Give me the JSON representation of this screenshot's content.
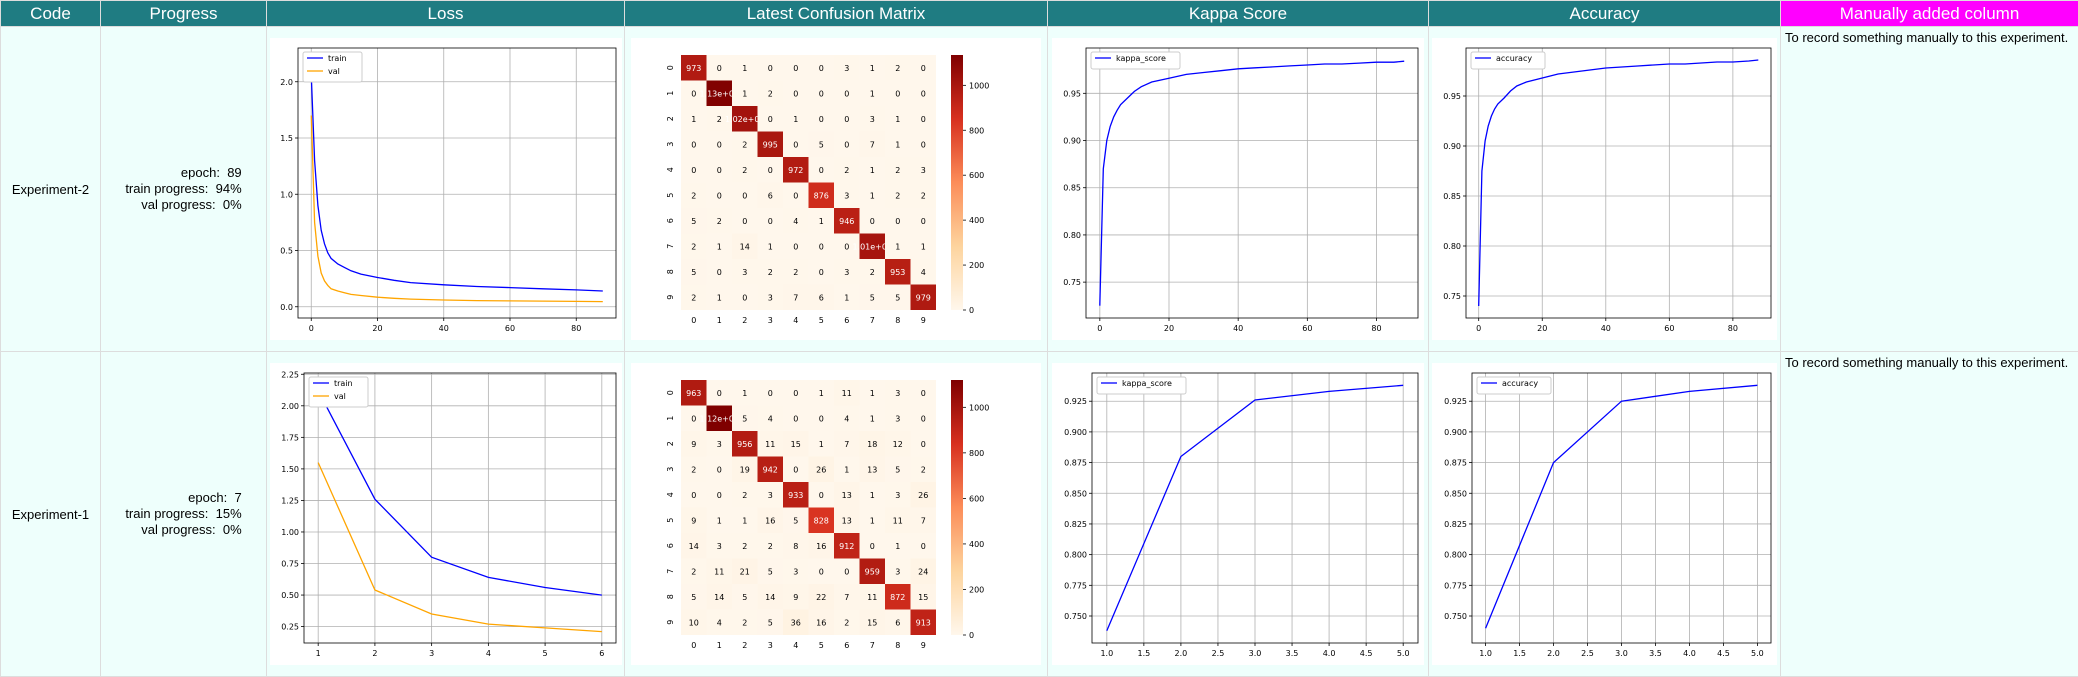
{
  "table": {
    "headers": [
      "Code",
      "Progress",
      "Loss",
      "Latest Confusion Matrix",
      "Kappa Score",
      "Accuracy",
      "Manually added column"
    ],
    "manual_header_color": "#ff00ff",
    "header_color": "#1f7c82",
    "rows": [
      {
        "code": "Experiment-2",
        "progress": {
          "epoch_label": "epoch:",
          "epoch": "89",
          "train_label": "train progress:",
          "train": "94%",
          "val_label": "val progress:",
          "val": "0%"
        },
        "manual_note": "To record something manually to this experiment."
      },
      {
        "code": "Experiment-1",
        "progress": {
          "epoch_label": "epoch:",
          "epoch": "7",
          "train_label": "train progress:",
          "train": "15%",
          "val_label": "val progress:",
          "val": "0%"
        },
        "manual_note": "To record something manually to this experiment."
      }
    ]
  },
  "chart_data": [
    {
      "id": "loss-exp2",
      "type": "line",
      "series": [
        {
          "name": "train",
          "color": "#0000ff",
          "x": [
            0,
            1,
            2,
            3,
            4,
            5,
            6,
            8,
            10,
            12,
            15,
            20,
            25,
            30,
            40,
            50,
            60,
            70,
            80,
            88
          ],
          "y": [
            2.05,
            1.3,
            0.9,
            0.68,
            0.56,
            0.48,
            0.43,
            0.38,
            0.35,
            0.32,
            0.29,
            0.26,
            0.235,
            0.215,
            0.195,
            0.18,
            0.17,
            0.16,
            0.15,
            0.14
          ]
        },
        {
          "name": "val",
          "color": "#ffa500",
          "x": [
            0,
            1,
            2,
            3,
            4,
            5,
            6,
            8,
            10,
            12,
            15,
            20,
            25,
            30,
            40,
            50,
            60,
            70,
            80,
            88
          ],
          "y": [
            1.7,
            0.75,
            0.45,
            0.3,
            0.23,
            0.19,
            0.16,
            0.14,
            0.125,
            0.11,
            0.1,
            0.085,
            0.075,
            0.068,
            0.06,
            0.055,
            0.052,
            0.05,
            0.048,
            0.046
          ]
        }
      ],
      "xlim": [
        -4,
        92
      ],
      "ylim": [
        -0.1,
        2.3
      ],
      "xticks": [
        0,
        20,
        40,
        60,
        80
      ],
      "yticks": [
        0.0,
        0.5,
        1.0,
        1.5,
        2.0
      ],
      "xtick_labels": [
        "0",
        "20",
        "40",
        "60",
        "80"
      ],
      "ytick_labels": [
        "0.0",
        "0.5",
        "1.0",
        "1.5",
        "2.0"
      ],
      "legend": [
        "train",
        "val"
      ],
      "legend_position": "top-left",
      "grid": true
    },
    {
      "id": "kappa-exp2",
      "type": "line",
      "series": [
        {
          "name": "kappa_score",
          "color": "#0000ff",
          "x": [
            0,
            1,
            2,
            3,
            4,
            5,
            6,
            8,
            10,
            12,
            15,
            20,
            25,
            30,
            35,
            40,
            45,
            50,
            55,
            60,
            65,
            70,
            75,
            80,
            85,
            88
          ],
          "y": [
            0.725,
            0.87,
            0.9,
            0.915,
            0.925,
            0.932,
            0.938,
            0.945,
            0.952,
            0.957,
            0.962,
            0.966,
            0.97,
            0.972,
            0.974,
            0.976,
            0.977,
            0.978,
            0.979,
            0.98,
            0.981,
            0.981,
            0.982,
            0.983,
            0.983,
            0.984
          ]
        }
      ],
      "xlim": [
        -4,
        92
      ],
      "ylim": [
        0.712,
        0.998
      ],
      "xticks": [
        0,
        20,
        40,
        60,
        80
      ],
      "yticks": [
        0.75,
        0.8,
        0.85,
        0.9,
        0.95
      ],
      "xtick_labels": [
        "0",
        "20",
        "40",
        "60",
        "80"
      ],
      "ytick_labels": [
        "0.75",
        "0.80",
        "0.85",
        "0.90",
        "0.95"
      ],
      "legend": [
        "kappa_score"
      ],
      "legend_position": "top-left",
      "grid": true
    },
    {
      "id": "acc-exp2",
      "type": "line",
      "series": [
        {
          "name": "accuracy",
          "color": "#0000ff",
          "x": [
            0,
            1,
            2,
            3,
            4,
            5,
            6,
            8,
            10,
            12,
            15,
            20,
            25,
            30,
            35,
            40,
            45,
            50,
            55,
            60,
            65,
            70,
            75,
            80,
            85,
            88
          ],
          "y": [
            0.74,
            0.875,
            0.905,
            0.92,
            0.93,
            0.937,
            0.942,
            0.948,
            0.955,
            0.96,
            0.964,
            0.968,
            0.972,
            0.974,
            0.976,
            0.978,
            0.979,
            0.98,
            0.981,
            0.982,
            0.982,
            0.983,
            0.984,
            0.984,
            0.985,
            0.986
          ]
        }
      ],
      "xlim": [
        -4,
        92
      ],
      "ylim": [
        0.728,
        0.998
      ],
      "xticks": [
        0,
        20,
        40,
        60,
        80
      ],
      "yticks": [
        0.75,
        0.8,
        0.85,
        0.9,
        0.95
      ],
      "xtick_labels": [
        "0",
        "20",
        "40",
        "60",
        "80"
      ],
      "ytick_labels": [
        "0.75",
        "0.80",
        "0.85",
        "0.90",
        "0.95"
      ],
      "legend": [
        "accuracy"
      ],
      "legend_position": "top-left",
      "grid": true
    },
    {
      "id": "loss-exp1",
      "type": "line",
      "series": [
        {
          "name": "train",
          "color": "#0000ff",
          "x": [
            1,
            2,
            3,
            4,
            5,
            6
          ],
          "y": [
            2.12,
            1.26,
            0.8,
            0.64,
            0.56,
            0.5
          ]
        },
        {
          "name": "val",
          "color": "#ffa500",
          "x": [
            1,
            2,
            3,
            4,
            5,
            6
          ],
          "y": [
            1.55,
            0.54,
            0.35,
            0.27,
            0.24,
            0.21
          ]
        }
      ],
      "xlim": [
        0.75,
        6.25
      ],
      "ylim": [
        0.12,
        2.26
      ],
      "xticks": [
        1,
        2,
        3,
        4,
        5,
        6
      ],
      "yticks": [
        0.25,
        0.5,
        0.75,
        1.0,
        1.25,
        1.5,
        1.75,
        2.0,
        2.25
      ],
      "xtick_labels": [
        "1",
        "2",
        "3",
        "4",
        "5",
        "6"
      ],
      "ytick_labels": [
        "0.25",
        "0.50",
        "0.75",
        "1.00",
        "1.25",
        "1.50",
        "1.75",
        "2.00",
        "2.25"
      ],
      "legend": [
        "train",
        "val"
      ],
      "legend_position": "top-left",
      "grid": true
    },
    {
      "id": "kappa-exp1",
      "type": "line",
      "series": [
        {
          "name": "kappa_score",
          "color": "#0000ff",
          "x": [
            1,
            2,
            3,
            4,
            5
          ],
          "y": [
            0.738,
            0.88,
            0.926,
            0.933,
            0.938
          ]
        }
      ],
      "xlim": [
        0.8,
        5.2
      ],
      "ylim": [
        0.728,
        0.948
      ],
      "xticks": [
        1.0,
        1.5,
        2.0,
        2.5,
        3.0,
        3.5,
        4.0,
        4.5,
        5.0
      ],
      "yticks": [
        0.75,
        0.775,
        0.8,
        0.825,
        0.85,
        0.875,
        0.9,
        0.925
      ],
      "xtick_labels": [
        "1.0",
        "1.5",
        "2.0",
        "2.5",
        "3.0",
        "3.5",
        "4.0",
        "4.5",
        "5.0"
      ],
      "ytick_labels": [
        "0.750",
        "0.775",
        "0.800",
        "0.825",
        "0.850",
        "0.875",
        "0.900",
        "0.925"
      ],
      "legend": [
        "kappa_score"
      ],
      "legend_position": "top-left",
      "grid": true
    },
    {
      "id": "acc-exp1",
      "type": "line",
      "series": [
        {
          "name": "accuracy",
          "color": "#0000ff",
          "x": [
            1,
            2,
            3,
            4,
            5
          ],
          "y": [
            0.74,
            0.875,
            0.925,
            0.933,
            0.938
          ]
        }
      ],
      "xlim": [
        0.8,
        5.2
      ],
      "ylim": [
        0.728,
        0.948
      ],
      "xticks": [
        1.0,
        1.5,
        2.0,
        2.5,
        3.0,
        3.5,
        4.0,
        4.5,
        5.0
      ],
      "yticks": [
        0.75,
        0.775,
        0.8,
        0.825,
        0.85,
        0.875,
        0.9,
        0.925
      ],
      "xtick_labels": [
        "1.0",
        "1.5",
        "2.0",
        "2.5",
        "3.0",
        "3.5",
        "4.0",
        "4.5",
        "5.0"
      ],
      "ytick_labels": [
        "0.750",
        "0.775",
        "0.800",
        "0.825",
        "0.850",
        "0.875",
        "0.900",
        "0.925"
      ],
      "legend": [
        "accuracy"
      ],
      "legend_position": "top-left",
      "grid": true
    },
    {
      "id": "cm-exp2",
      "type": "heatmap",
      "colormap": "OrRd",
      "vmax": 1135,
      "colorbar_ticks": [
        0,
        200,
        400,
        600,
        800,
        1000
      ],
      "labels": [
        "0",
        "1",
        "2",
        "3",
        "4",
        "5",
        "6",
        "7",
        "8",
        "9"
      ],
      "cells": [
        [
          "973",
          "0",
          "1",
          "0",
          "0",
          "0",
          "3",
          "1",
          "2",
          "0"
        ],
        [
          "0",
          "1.13e+03",
          "1",
          "2",
          "0",
          "0",
          "0",
          "1",
          "0",
          "0"
        ],
        [
          "1",
          "2",
          "1.02e+03",
          "0",
          "1",
          "0",
          "0",
          "3",
          "1",
          "0"
        ],
        [
          "0",
          "0",
          "2",
          "995",
          "0",
          "5",
          "0",
          "7",
          "1",
          "0"
        ],
        [
          "0",
          "0",
          "2",
          "0",
          "972",
          "0",
          "2",
          "1",
          "2",
          "3"
        ],
        [
          "2",
          "0",
          "0",
          "6",
          "0",
          "876",
          "3",
          "1",
          "2",
          "2"
        ],
        [
          "5",
          "2",
          "0",
          "0",
          "4",
          "1",
          "946",
          "0",
          "0",
          "0"
        ],
        [
          "2",
          "1",
          "14",
          "1",
          "0",
          "0",
          "0",
          "1.01e+03",
          "1",
          "1"
        ],
        [
          "5",
          "0",
          "3",
          "2",
          "2",
          "0",
          "3",
          "2",
          "953",
          "4"
        ],
        [
          "2",
          "1",
          "0",
          "3",
          "7",
          "6",
          "1",
          "5",
          "5",
          "979"
        ]
      ]
    },
    {
      "id": "cm-exp1",
      "type": "heatmap",
      "colormap": "OrRd",
      "vmax": 1120,
      "colorbar_ticks": [
        0,
        200,
        400,
        600,
        800,
        1000
      ],
      "labels": [
        "0",
        "1",
        "2",
        "3",
        "4",
        "5",
        "6",
        "7",
        "8",
        "9"
      ],
      "cells": [
        [
          "963",
          "0",
          "1",
          "0",
          "0",
          "1",
          "11",
          "1",
          "3",
          "0"
        ],
        [
          "0",
          "1.12e+03",
          "5",
          "4",
          "0",
          "0",
          "4",
          "1",
          "3",
          "0"
        ],
        [
          "9",
          "3",
          "956",
          "11",
          "15",
          "1",
          "7",
          "18",
          "12",
          "0"
        ],
        [
          "2",
          "0",
          "19",
          "942",
          "0",
          "26",
          "1",
          "13",
          "5",
          "2"
        ],
        [
          "0",
          "0",
          "2",
          "3",
          "933",
          "0",
          "13",
          "1",
          "3",
          "26"
        ],
        [
          "9",
          "1",
          "1",
          "16",
          "5",
          "828",
          "13",
          "1",
          "11",
          "7"
        ],
        [
          "14",
          "3",
          "2",
          "2",
          "8",
          "16",
          "912",
          "0",
          "1",
          "0"
        ],
        [
          "2",
          "11",
          "21",
          "5",
          "3",
          "0",
          "0",
          "959",
          "3",
          "24"
        ],
        [
          "5",
          "14",
          "5",
          "14",
          "9",
          "22",
          "7",
          "11",
          "872",
          "15"
        ],
        [
          "10",
          "4",
          "2",
          "5",
          "36",
          "16",
          "2",
          "15",
          "6",
          "913"
        ]
      ]
    }
  ]
}
